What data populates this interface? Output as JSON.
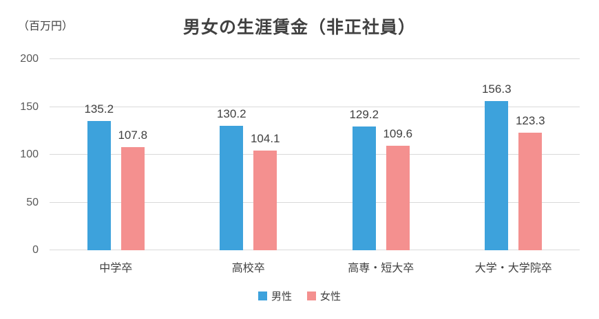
{
  "chart_data": {
    "type": "bar",
    "title": "男女の生涯賃金（非正社員）",
    "unit_label": "（百万円）",
    "categories": [
      "中学卒",
      "高校卒",
      "高専・短大卒",
      "大学・大学院卒"
    ],
    "series": [
      {
        "name": "男性",
        "color": "#3da2dc",
        "values": [
          135.2,
          130.2,
          129.2,
          156.3
        ]
      },
      {
        "name": "女性",
        "color": "#f4908f",
        "values": [
          107.8,
          104.1,
          109.6,
          123.3
        ]
      }
    ],
    "ylim": [
      0,
      200
    ],
    "yticks": [
      0,
      50,
      100,
      150,
      200
    ],
    "grid": true,
    "legend_position": "bottom",
    "colors": {
      "gridline": "#d9d9d9",
      "title_text": "#404040",
      "tick_text": "#595959"
    }
  }
}
